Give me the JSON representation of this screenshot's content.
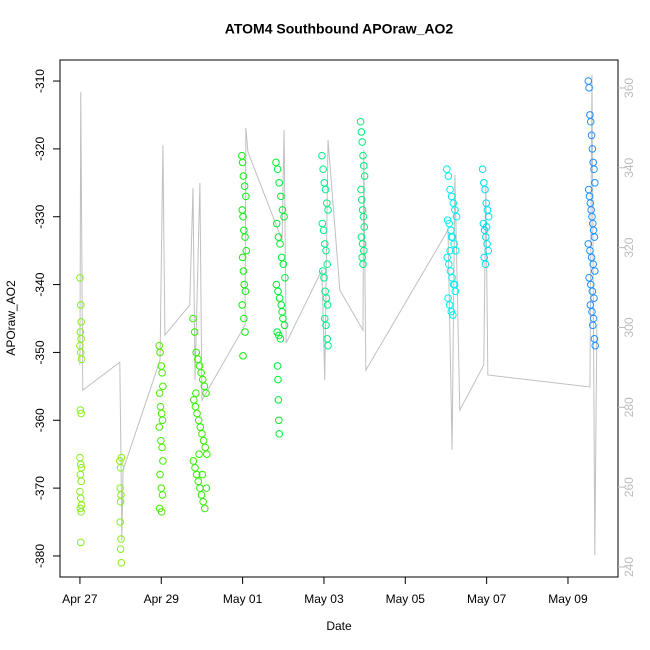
{
  "chart_data": {
    "type": "scatter",
    "title": "ATOM4 Southbound APOraw_AO2",
    "x_label": "Date",
    "y_label": "APOraw_AO2",
    "xlim": [
      -0.49,
      13.23
    ],
    "xticks": [
      {
        "value": 0,
        "label": "Apr 27"
      },
      {
        "value": 2,
        "label": "Apr 29"
      },
      {
        "value": 4,
        "label": "May 01"
      },
      {
        "value": 6,
        "label": "May 03"
      },
      {
        "value": 8,
        "label": "May 05"
      },
      {
        "value": 10,
        "label": "May 07"
      },
      {
        "value": 12,
        "label": "May 09"
      }
    ],
    "ylim": [
      -383.1,
      -306.9
    ],
    "yticks": [
      -380,
      -370,
      -360,
      -350,
      -340,
      -330,
      -320,
      -310
    ],
    "y2lim": [
      237.5,
      367
    ],
    "y2ticks": [
      240,
      260,
      280,
      300,
      320,
      340,
      360
    ],
    "series": [
      {
        "mode": "line",
        "axis": "y2",
        "color": "#c0c0c0",
        "x": [
          0.0,
          0.02,
          0.07,
          0.98,
          1.01,
          1.03,
          1.06,
          1.97,
          2.04,
          2.09,
          2.7,
          2.78,
          2.83,
          2.95,
          3.0,
          4.06,
          4.08,
          4.13,
          4.97,
          5.02,
          5.07,
          5.95,
          6.02,
          6.1,
          6.39,
          6.96,
          6.98,
          7.03,
          9.05,
          9.15,
          9.22,
          9.34,
          9.93,
          9.98,
          10.03,
          12.54,
          12.59,
          12.66,
          12.71
        ],
        "values": [
          290.6,
          359.0,
          284.3,
          291.3,
          266.8,
          246.7,
          264.3,
          291.8,
          345.7,
          298.1,
          305.6,
          334.9,
          286.8,
          336.2,
          281.8,
          300.6,
          350.0,
          344.0,
          321.9,
          349.5,
          296.1,
          314.4,
          286.8,
          347.0,
          309.4,
          299.3,
          344.5,
          289.3,
          324.4,
          269.3,
          338.2,
          279.3,
          290.6,
          335.7,
          288.1,
          285.1,
          363.3,
          243.0,
          300.6
        ]
      },
      {
        "mode": "points",
        "color": "#88ee22",
        "x": [
          0.0,
          0.02,
          0.03,
          0.01,
          0.03,
          0.0,
          0.02,
          0.04,
          0.01,
          0.03,
          0.0,
          0.02,
          0.04,
          0.01,
          0.03,
          0.0,
          0.02,
          0.04,
          0.01,
          0.03,
          0.02
        ],
        "values": [
          -339,
          -343,
          -345.5,
          -347,
          -348,
          -349,
          -350,
          -351,
          -358.5,
          -359,
          -365.5,
          -366.5,
          -367,
          -368,
          -369,
          -370.5,
          -371.5,
          -372.5,
          -373,
          -373.5,
          -378
        ]
      },
      {
        "mode": "points",
        "color": "#88ee22",
        "x": [
          0.98,
          1.0,
          1.02,
          0.99,
          1.01,
          1.0,
          0.99,
          1.01,
          1.0,
          1.02
        ],
        "values": [
          -366,
          -367,
          -365.5,
          -370,
          -371,
          -372,
          -375,
          -377.5,
          -379,
          -381
        ]
      },
      {
        "mode": "points",
        "color": "#44ee00",
        "x": [
          1.95,
          1.97,
          2.0,
          2.02,
          2.04,
          1.96,
          1.98,
          2.01,
          2.03,
          1.95,
          1.99,
          2.02,
          2.04,
          1.97,
          2.0,
          2.03,
          1.96,
          2.01
        ],
        "values": [
          -349,
          -350,
          -352,
          -353,
          -355,
          -356,
          -358,
          -359,
          -360,
          -361,
          -363,
          -364,
          -366,
          -368,
          -370,
          -371,
          -373,
          -373.5
        ]
      },
      {
        "mode": "points",
        "color": "#33ee00",
        "x": [
          2.78,
          2.82,
          2.86,
          2.9,
          2.94,
          2.98,
          3.02,
          3.06,
          3.1,
          2.8,
          2.84,
          2.88,
          2.92,
          2.96,
          3.0,
          3.04,
          3.08,
          3.12,
          2.79,
          2.83,
          2.87,
          2.91,
          2.95,
          2.99,
          3.03,
          3.07,
          3.11,
          2.85,
          2.93,
          3.01
        ],
        "values": [
          -345,
          -347,
          -350,
          -351,
          -352,
          -353,
          -354,
          -355,
          -356,
          -357,
          -358,
          -359,
          -360,
          -361,
          -362,
          -363,
          -364,
          -365,
          -366,
          -367,
          -368,
          -369,
          -370,
          -371,
          -372,
          -373,
          -370,
          -356,
          -365,
          -368
        ]
      },
      {
        "mode": "points",
        "color": "#11ee11",
        "x": [
          3.98,
          4.0,
          4.02,
          4.05,
          4.08,
          3.99,
          4.01,
          4.03,
          4.06,
          4.09,
          4.0,
          4.02,
          4.04,
          4.07,
          3.99,
          4.03,
          4.06,
          4.01
        ],
        "values": [
          -321,
          -322,
          -324,
          -325.5,
          -327,
          -329,
          -330,
          -332,
          -333,
          -335,
          -336,
          -338,
          -340,
          -341,
          -343,
          -345,
          -347,
          -350.5
        ]
      },
      {
        "mode": "points",
        "color": "#00ee33",
        "x": [
          4.82,
          4.86,
          4.9,
          4.94,
          4.98,
          5.02,
          4.84,
          4.88,
          4.92,
          4.96,
          5.0,
          5.04,
          4.83,
          4.87,
          4.91,
          4.95,
          4.99,
          5.03,
          4.85,
          4.89,
          4.93,
          4.97,
          4.86,
          4.87,
          4.88,
          4.89,
          4.9
        ],
        "values": [
          -322,
          -323,
          -325,
          -327,
          -329,
          -330,
          -331,
          -333,
          -334,
          -336,
          -337,
          -339,
          -340,
          -341,
          -342,
          -343,
          -345,
          -346,
          -347,
          -347.5,
          -348,
          -344,
          -352,
          -354,
          -357,
          -360,
          -362
        ]
      },
      {
        "mode": "points",
        "color": "#00ee88",
        "x": [
          5.95,
          5.98,
          6.01,
          6.04,
          6.07,
          6.1,
          5.96,
          5.99,
          6.02,
          6.05,
          6.08,
          5.97,
          6.0,
          6.03,
          6.06,
          6.09,
          6.02,
          6.05,
          6.08,
          6.1
        ],
        "values": [
          -321,
          -323,
          -325,
          -326,
          -328,
          -329,
          -331,
          -332,
          -334,
          -335,
          -337,
          -338,
          -339,
          -341,
          -342,
          -343,
          -345,
          -346,
          -348,
          -349
        ]
      },
      {
        "mode": "points",
        "color": "#00ee77",
        "x": [
          6.9,
          6.92,
          6.94,
          6.96,
          6.98,
          7.0,
          6.91,
          6.93,
          6.95,
          6.97,
          6.99,
          6.92,
          6.95,
          6.98,
          6.94,
          6.96
        ],
        "values": [
          -316,
          -317.5,
          -319,
          -321,
          -322.5,
          -324,
          -326,
          -327.5,
          -329,
          -330,
          -331.5,
          -333,
          -334,
          -335,
          -336,
          -337
        ]
      },
      {
        "mode": "points",
        "color": "#00eeee",
        "x": [
          9.02,
          9.06,
          9.1,
          9.14,
          9.18,
          9.22,
          9.26,
          9.04,
          9.08,
          9.12,
          9.16,
          9.2,
          9.24,
          9.03,
          9.07,
          9.11,
          9.15,
          9.19,
          9.23,
          9.05,
          9.09,
          9.13,
          9.17,
          9.21,
          9.1,
          9.14
        ],
        "values": [
          -323,
          -324,
          -326,
          -327,
          -328,
          -329,
          -330,
          -330.5,
          -331,
          -332,
          -333,
          -334,
          -335,
          -336,
          -337,
          -338,
          -339,
          -340,
          -341,
          -342,
          -343,
          -344,
          -344.5,
          -340,
          -335,
          -333
        ]
      },
      {
        "mode": "points",
        "color": "#00ddee",
        "x": [
          9.9,
          9.93,
          9.96,
          9.99,
          10.02,
          10.05,
          9.92,
          9.95,
          9.98,
          10.01,
          10.04,
          9.94,
          9.97,
          10.0
        ],
        "values": [
          -323,
          -325,
          -326,
          -328,
          -329,
          -330,
          -331,
          -332,
          -333,
          -334,
          -335,
          -336,
          -337,
          -331.5
        ]
      },
      {
        "mode": "points",
        "color": "#1e90ff",
        "x": [
          12.5,
          12.52,
          12.54,
          12.56,
          12.58,
          12.6,
          12.62,
          12.64,
          12.66,
          12.51,
          12.53,
          12.55,
          12.57,
          12.59,
          12.61,
          12.63,
          12.65,
          12.5,
          12.54,
          12.58,
          12.62,
          12.66,
          12.52,
          12.56,
          12.6,
          12.64,
          12.55,
          12.59,
          12.63,
          12.61,
          12.65,
          12.67
        ],
        "values": [
          -310,
          -311,
          -315,
          -316,
          -318,
          -320,
          -322,
          -323,
          -325,
          -326,
          -327,
          -328,
          -329,
          -330,
          -331,
          -332,
          -333,
          -334,
          -335,
          -336,
          -337,
          -338,
          -339,
          -340,
          -341,
          -342,
          -343,
          -344,
          -345,
          -346,
          -348,
          -349
        ]
      }
    ]
  }
}
